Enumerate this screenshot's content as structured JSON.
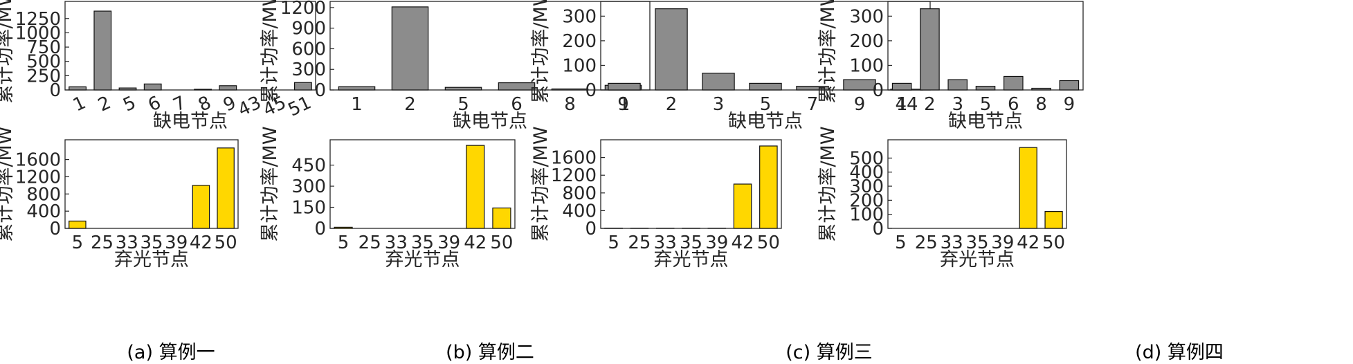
{
  "colors": {
    "shortage_bar": "#8c8c8c",
    "curtail_bar": "#ffd700",
    "bar_edge": "#111111",
    "axis": "#262626"
  },
  "chart_data": [
    {
      "type": "bar",
      "panel": "(a)",
      "row": "top",
      "xlabel": "缺电节点",
      "ylabel": "累计功率/MW",
      "categories": [
        "1",
        "2",
        "5",
        "6",
        "7",
        "8",
        "9",
        "43",
        "45",
        "51"
      ],
      "values": [
        55,
        1380,
        35,
        105,
        0,
        12,
        75,
        0,
        0,
        130
      ],
      "ylim": [
        0,
        1550
      ],
      "yticks": [
        0,
        250,
        500,
        750,
        1000,
        1250
      ],
      "rotate_xticks": true
    },
    {
      "type": "bar",
      "panel": "(a)",
      "row": "bottom",
      "xlabel": "弃光节点",
      "ylabel": "累计功率/MW",
      "categories": [
        "5",
        "25",
        "33",
        "35",
        "39",
        "42",
        "50"
      ],
      "values": [
        170,
        0,
        0,
        0,
        0,
        1000,
        1870
      ],
      "ylim": [
        0,
        2060
      ],
      "yticks": [
        0,
        400,
        800,
        1200,
        1600
      ]
    },
    {
      "type": "bar",
      "panel": "(b)",
      "row": "top",
      "xlabel": "缺电节点",
      "ylabel": "累计功率/MW",
      "categories": [
        "1",
        "2",
        "5",
        "6",
        "8",
        "9"
      ],
      "values": [
        48,
        1210,
        38,
        105,
        15,
        68
      ],
      "ylim": [
        0,
        1290
      ],
      "yticks": [
        0,
        300,
        600,
        900,
        1200
      ]
    },
    {
      "type": "bar",
      "panel": "(b)",
      "row": "bottom",
      "xlabel": "弃光节点",
      "ylabel": "累计功率/MW",
      "categories": [
        "5",
        "25",
        "33",
        "35",
        "39",
        "42",
        "50"
      ],
      "values": [
        8,
        0,
        0,
        0,
        0,
        590,
        145
      ],
      "ylim": [
        0,
        630
      ],
      "yticks": [
        0,
        150,
        300,
        450
      ]
    },
    {
      "type": "bar",
      "panel": "(c)",
      "row": "top",
      "xlabel": "缺电节点",
      "ylabel": "累计功率/MW",
      "categories": [
        "1",
        "2",
        "3",
        "5",
        "7",
        "9",
        "44"
      ],
      "values": [
        27,
        330,
        68,
        27,
        15,
        42,
        3
      ],
      "ylim": [
        0,
        360
      ],
      "yticks": [
        0,
        100,
        200,
        300
      ]
    },
    {
      "type": "bar",
      "panel": "(c)",
      "row": "bottom",
      "xlabel": "弃光节点",
      "ylabel": "累计功率/MW",
      "categories": [
        "5",
        "25",
        "33",
        "35",
        "39",
        "42",
        "50"
      ],
      "values": [
        5,
        3,
        3,
        3,
        3,
        1000,
        1860
      ],
      "ylim": [
        0,
        2000
      ],
      "yticks": [
        0,
        400,
        800,
        1200,
        1600
      ]
    },
    {
      "type": "bar",
      "panel": "(d)",
      "row": "top",
      "xlabel": "缺电节点",
      "ylabel": "累计功率/MW",
      "categories": [
        "1",
        "2",
        "3",
        "5",
        "6",
        "8",
        "9"
      ],
      "values": [
        27,
        330,
        42,
        15,
        55,
        7,
        38
      ],
      "ylim": [
        0,
        360
      ],
      "yticks": [
        0,
        100,
        200,
        300
      ]
    },
    {
      "type": "bar",
      "panel": "(d)",
      "row": "bottom",
      "xlabel": "弃光节点",
      "ylabel": "累计功率/MW",
      "categories": [
        "5",
        "25",
        "33",
        "35",
        "39",
        "42",
        "50"
      ],
      "values": [
        0,
        0,
        0,
        0,
        0,
        575,
        120
      ],
      "ylim": [
        0,
        630
      ],
      "yticks": [
        0,
        100,
        200,
        300,
        400,
        500
      ]
    }
  ],
  "captions": [
    "(a)  算例一",
    "(b)  算例二",
    "(c)  算例三",
    "(d)  算例四"
  ]
}
